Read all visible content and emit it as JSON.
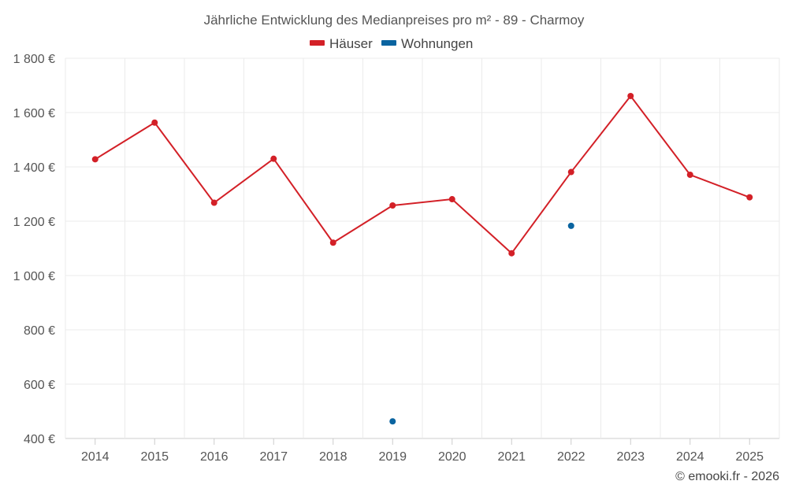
{
  "chart_data": {
    "type": "line",
    "title": "Jährliche Entwicklung des Medianpreises pro m² - 89 - Charmoy",
    "categories": [
      "2014",
      "2015",
      "2016",
      "2017",
      "2018",
      "2019",
      "2020",
      "2021",
      "2022",
      "2023",
      "2024",
      "2025"
    ],
    "series": [
      {
        "name": "Häuser",
        "color": "#d32027",
        "values": [
          1428,
          1563,
          1268,
          1430,
          1121,
          1258,
          1281,
          1082,
          1381,
          1661,
          1371,
          1288
        ]
      },
      {
        "name": "Wohnungen",
        "color": "#0a64a0",
        "values": [
          null,
          null,
          null,
          null,
          null,
          463,
          null,
          null,
          1183,
          null,
          null,
          null
        ]
      }
    ],
    "ylim": [
      400,
      1800
    ],
    "yticks": [
      400,
      600,
      800,
      1000,
      1200,
      1400,
      1600,
      1800
    ],
    "ytick_labels": [
      "400 €",
      "600 €",
      "800 €",
      "1 000 €",
      "1 200 €",
      "1 400 €",
      "1 600 €",
      "1 800 €"
    ],
    "grid": true,
    "legend": "top-center",
    "xlabel": "",
    "ylabel": ""
  },
  "credit": "© emooki.fr - 2026"
}
